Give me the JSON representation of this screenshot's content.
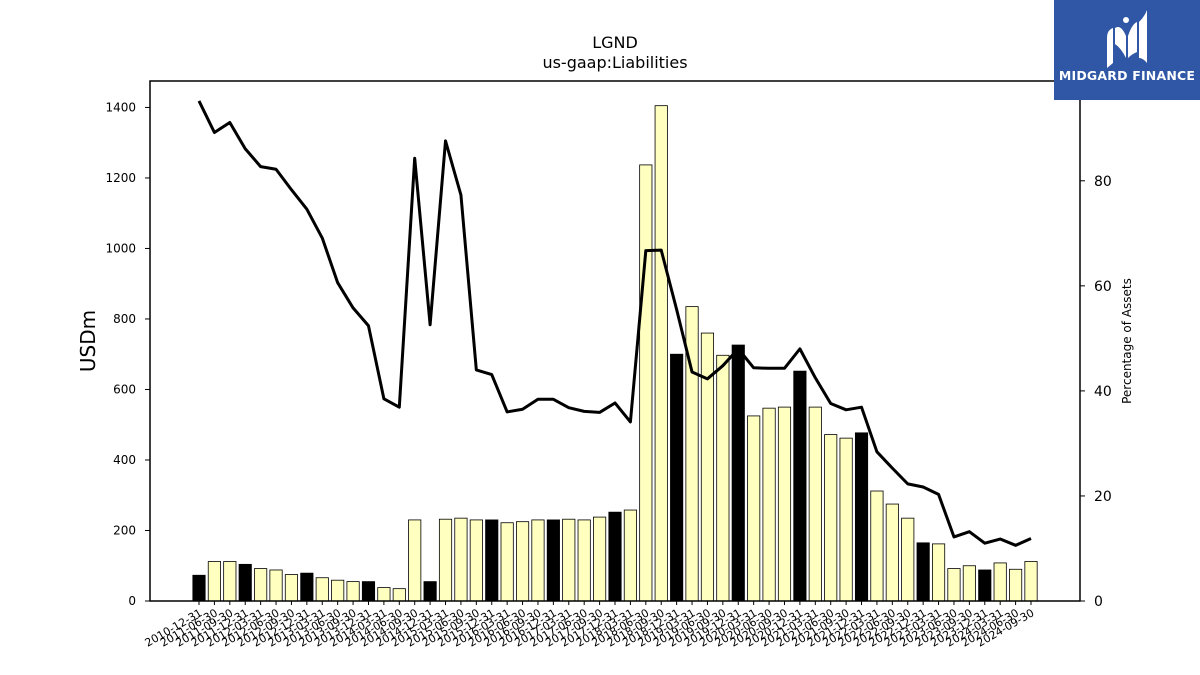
{
  "chart_data": {
    "type": "bar+line",
    "title": "LGND",
    "subtitle": "us-gaap:Liabilities",
    "ylabel": "USDm",
    "ylabel_right": "Percentage of Assets",
    "ylim": [
      0,
      1475
    ],
    "ylim_right": [
      0,
      99
    ],
    "yticks": [
      0,
      200,
      400,
      600,
      800,
      1000,
      1200,
      1400
    ],
    "yticks_right": [
      0,
      20,
      40,
      60,
      80
    ],
    "categories": [
      "2010-12-31",
      "2011-06-30",
      "2011-09-30",
      "2011-12-31",
      "2012-03-31",
      "2012-06-30",
      "2012-09-30",
      "2012-12-31",
      "2013-03-31",
      "2013-06-30",
      "2013-09-30",
      "2013-12-31",
      "2014-03-31",
      "2014-06-30",
      "2014-09-30",
      "2014-12-31",
      "2015-03-31",
      "2015-06-30",
      "2015-09-30",
      "2015-12-31",
      "2016-03-31",
      "2016-06-30",
      "2016-09-30",
      "2016-12-31",
      "2017-03-31",
      "2017-06-30",
      "2017-09-30",
      "2017-12-31",
      "2018-03-31",
      "2018-06-30",
      "2018-09-30",
      "2018-12-31",
      "2019-03-31",
      "2019-06-30",
      "2019-09-30",
      "2019-12-31",
      "2020-03-31",
      "2020-06-30",
      "2020-09-30",
      "2020-12-31",
      "2021-03-31",
      "2021-06-30",
      "2021-09-30",
      "2021-12-31",
      "2022-03-31",
      "2022-06-30",
      "2022-09-30",
      "2022-12-31",
      "2023-03-31",
      "2023-06-30",
      "2023-09-30",
      "2023-12-31",
      "2024-03-31",
      "2024-06-30",
      "2024-09-30"
    ],
    "series": [
      {
        "values": [
          73,
          112,
          112,
          104,
          92,
          88,
          75,
          79,
          66,
          59,
          55,
          55,
          38,
          35,
          230,
          55,
          232,
          235,
          230,
          230,
          222,
          225,
          230,
          230,
          232,
          230,
          238,
          252,
          258,
          1237,
          1405,
          700,
          835,
          760,
          697,
          726,
          525,
          547,
          550,
          652,
          550,
          472,
          462,
          477,
          312,
          275,
          235,
          165,
          162,
          92,
          100,
          88,
          108,
          90,
          112
        ],
        "year_end_flags": [
          1,
          0,
          0,
          1,
          0,
          0,
          0,
          1,
          0,
          0,
          0,
          1,
          0,
          0,
          0,
          1,
          0,
          0,
          0,
          1,
          0,
          0,
          0,
          1,
          0,
          0,
          0,
          1,
          0,
          0,
          0,
          1,
          0,
          0,
          0,
          1,
          0,
          0,
          0,
          1,
          0,
          0,
          0,
          1,
          0,
          0,
          0,
          1,
          0,
          0,
          0,
          1,
          0,
          0,
          0
        ],
        "colors": {
          "year_end": "#000000",
          "quarter": "#ffffc0"
        }
      },
      {
        "axis": "right",
        "color": "#000000",
        "values": [
          95.2,
          89.2,
          91.1,
          86.1,
          82.7,
          82.2,
          78.3,
          74.6,
          69.1,
          60.6,
          55.8,
          52.4,
          38.5,
          36.9,
          84.3,
          52.6,
          87.6,
          77.3,
          44.0,
          43.1,
          36.0,
          36.5,
          38.4,
          38.4,
          36.8,
          36.1,
          35.9,
          37.7,
          34.1,
          66.7,
          66.8,
          55.5,
          43.6,
          42.3,
          44.8,
          48.0,
          44.4,
          44.3,
          44.3,
          48.0,
          42.5,
          37.6,
          36.4,
          36.9,
          28.4,
          25.3,
          22.3,
          21.7,
          20.3,
          12.2,
          13.2,
          11.0,
          11.8,
          10.6,
          11.9
        ]
      }
    ],
    "grid": false,
    "legend": "none"
  },
  "logo": {
    "text": "MIDGARD FINANCE",
    "color": "#2f57a6"
  }
}
